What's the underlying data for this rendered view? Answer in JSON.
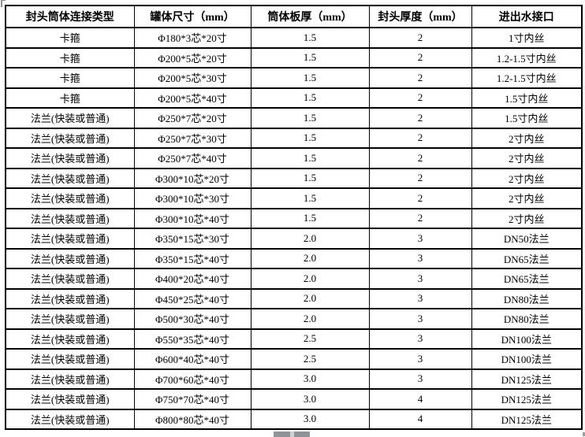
{
  "colors": {
    "table_border": "#000000",
    "background": "#ffffff",
    "drag_handle": "#8f9496"
  },
  "table": {
    "headers": [
      "封头筒体连接类型",
      "罐体尺寸（mm）",
      "筒体板厚（mm）",
      "封头厚度（mm）",
      "进出水接口"
    ],
    "rows": [
      [
        "卡箍",
        "Φ180*3芯*20寸",
        "1.5",
        "2",
        "1寸内丝"
      ],
      [
        "卡箍",
        "Φ200*5芯*20寸",
        "1.5",
        "2",
        "1.2-1.5寸内丝"
      ],
      [
        "卡箍",
        "Φ200*5芯*30寸",
        "1.5",
        "2",
        "1.2-1.5寸内丝"
      ],
      [
        "卡箍",
        "Φ200*5芯*40寸",
        "1.5",
        "2",
        "1.5寸内丝"
      ],
      [
        "法兰(快装或普通)",
        "Φ250*7芯*20寸",
        "1.5",
        "2",
        "1.5寸内丝"
      ],
      [
        "法兰(快装或普通)",
        "Φ250*7芯*30寸",
        "1.5",
        "2",
        "2寸内丝"
      ],
      [
        "法兰(快装或普通)",
        "Φ250*7芯*40寸",
        "1.5",
        "2",
        "2寸内丝"
      ],
      [
        "法兰(快装或普通)",
        "Φ300*10芯*20寸",
        "1.5",
        "2",
        "2寸内丝"
      ],
      [
        "法兰(快装或普通)",
        "Φ300*10芯*30寸",
        "1.5",
        "2",
        "2寸内丝"
      ],
      [
        "法兰(快装或普通)",
        "Φ300*10芯*40寸",
        "1.5",
        "2",
        "2寸内丝"
      ],
      [
        "法兰(快装或普通)",
        "Φ350*15芯*30寸",
        "2.0",
        "3",
        "DN50法兰"
      ],
      [
        "法兰(快装或普通)",
        "Φ350*15芯*40寸",
        "2.0",
        "3",
        "DN65法兰"
      ],
      [
        "法兰(快装或普通)",
        "Φ400*20芯*40寸",
        "2.0",
        "3",
        "DN65法兰"
      ],
      [
        "法兰(快装或普通)",
        "Φ450*25芯*40寸",
        "2.0",
        "3",
        "DN80法兰"
      ],
      [
        "法兰(快装或普通)",
        "Φ500*30芯*40寸",
        "2.0",
        "3",
        "DN80法兰"
      ],
      [
        "法兰(快装或普通)",
        "Φ550*35芯*40寸",
        "2.5",
        "3",
        "DN100法兰"
      ],
      [
        "法兰(快装或普通)",
        "Φ600*40芯*40寸",
        "2.5",
        "3",
        "DN100法兰"
      ],
      [
        "法兰(快装或普通)",
        "Φ700*60芯*40寸",
        "3.0",
        "3",
        "DN125法兰"
      ],
      [
        "法兰(快装或普通)",
        "Φ750*70芯*40寸",
        "3.0",
        "4",
        "DN125法兰"
      ],
      [
        "法兰(快装或普通)",
        "Φ800*80芯*40寸",
        "3.0",
        "4",
        "DN125法兰"
      ]
    ]
  }
}
